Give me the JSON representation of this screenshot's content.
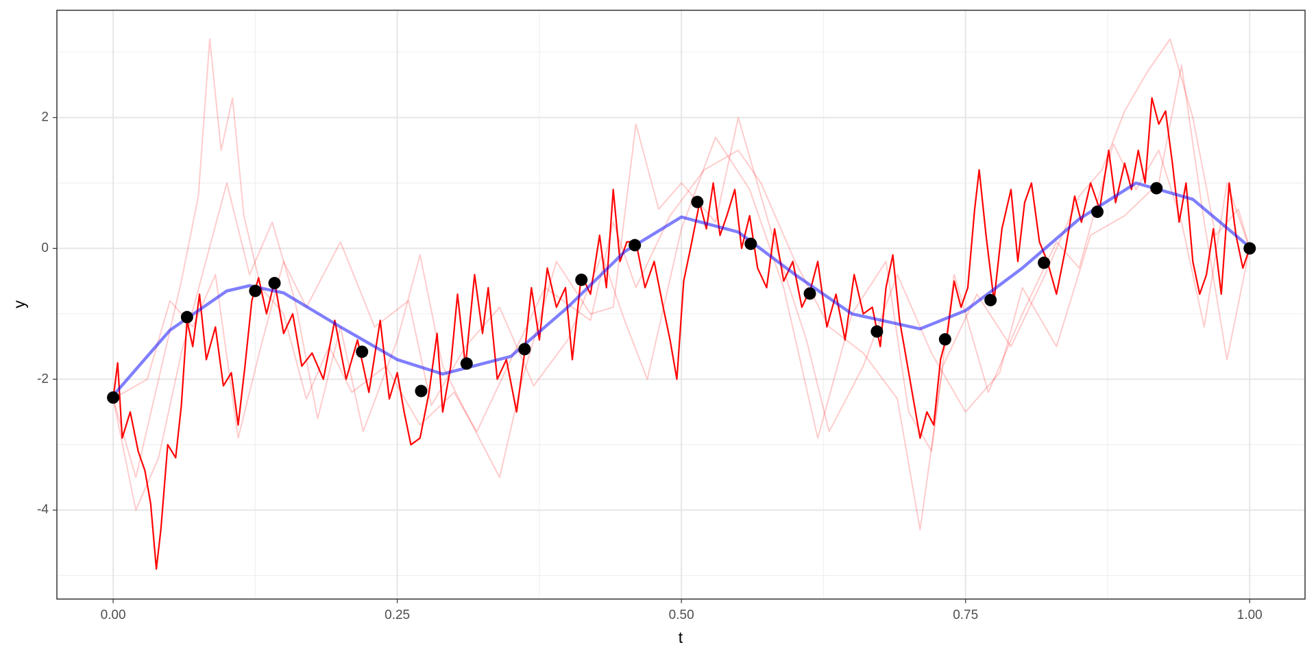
{
  "chart_data": {
    "type": "line",
    "xlabel": "t",
    "ylabel": "y",
    "xlim": [
      -0.0495,
      1.0487
    ],
    "ylim": [
      -5.36,
      3.64
    ],
    "xticks": [
      {
        "value": 0,
        "label": "0.00"
      },
      {
        "value": 0.25,
        "label": "0.25"
      },
      {
        "value": 0.5,
        "label": "0.50"
      },
      {
        "value": 0.75,
        "label": "0.75"
      },
      {
        "value": 1,
        "label": "1.00"
      }
    ],
    "yticks": [
      -4,
      -2,
      0,
      2
    ],
    "xminor_ticks": [
      0.125,
      0.375,
      0.625,
      0.875
    ],
    "yminor_ticks": [
      -5,
      -3,
      -1,
      1,
      3
    ],
    "grid": true,
    "series": [
      {
        "mark": "line",
        "color": "#ff0000",
        "opacity": 0.2,
        "width": 2,
        "x": [
          0,
          0.02,
          0.04,
          0.06,
          0.075,
          0.085,
          0.095,
          0.105,
          0.115,
          0.13,
          0.15,
          0.17,
          0.19,
          0.21,
          0.24,
          0.27,
          0.3,
          0.32,
          0.35,
          0.38,
          0.42,
          0.44,
          0.46,
          0.49,
          0.52,
          0.55,
          0.57,
          0.6,
          0.63,
          0.66,
          0.69,
          0.71,
          0.73,
          0.76,
          0.79,
          0.82,
          0.85,
          0.87,
          0.89,
          0.91,
          0.93,
          0.95,
          0.97,
          0.99,
          1.0
        ],
        "values": [
          -2.3,
          -3.5,
          -2.0,
          -0.5,
          0.8,
          3.2,
          1.5,
          2.3,
          0.5,
          -0.6,
          -1.0,
          -2.3,
          -1.5,
          -2.2,
          -1.8,
          -2.7,
          -2.2,
          -2.8,
          -1.7,
          -0.6,
          -1.1,
          0.4,
          -0.6,
          0.5,
          1.2,
          1.5,
          1.0,
          -0.2,
          -1.2,
          -1.6,
          -2.3,
          -4.3,
          -1.8,
          -0.7,
          -1.5,
          -0.4,
          0.8,
          1.2,
          2.1,
          2.7,
          3.2,
          2.0,
          0.2,
          0.6,
          0.0
        ]
      },
      {
        "mark": "line",
        "color": "#ff0000",
        "opacity": 0.2,
        "width": 2,
        "x": [
          0,
          0.02,
          0.04,
          0.06,
          0.08,
          0.1,
          0.12,
          0.14,
          0.16,
          0.18,
          0.2,
          0.22,
          0.25,
          0.27,
          0.29,
          0.31,
          0.34,
          0.36,
          0.39,
          0.42,
          0.44,
          0.46,
          0.48,
          0.5,
          0.53,
          0.55,
          0.58,
          0.61,
          0.63,
          0.66,
          0.69,
          0.72,
          0.75,
          0.78,
          0.8,
          0.83,
          0.86,
          0.89,
          0.92,
          0.94,
          0.96,
          0.98,
          1.0
        ],
        "values": [
          -2.3,
          -4.0,
          -3.2,
          -1.6,
          -0.3,
          1.0,
          -0.4,
          0.4,
          -0.8,
          -2.6,
          -1.2,
          -2.8,
          -1.4,
          -0.1,
          -1.8,
          -2.5,
          -3.5,
          -2.0,
          -0.2,
          -1.0,
          -0.9,
          1.9,
          0.6,
          1.0,
          0.4,
          2.0,
          0.2,
          -1.4,
          -2.8,
          -1.8,
          -0.4,
          -1.6,
          -2.5,
          -1.9,
          -0.6,
          -1.5,
          0.2,
          0.5,
          1.0,
          2.8,
          0.4,
          -1.7,
          0.0
        ]
      },
      {
        "mark": "line",
        "color": "#ff0000",
        "opacity": 0.2,
        "width": 2,
        "x": [
          0,
          0.03,
          0.05,
          0.07,
          0.09,
          0.11,
          0.13,
          0.15,
          0.17,
          0.2,
          0.23,
          0.26,
          0.28,
          0.31,
          0.34,
          0.37,
          0.4,
          0.43,
          0.45,
          0.47,
          0.5,
          0.53,
          0.56,
          0.59,
          0.62,
          0.65,
          0.68,
          0.7,
          0.72,
          0.74,
          0.77,
          0.8,
          0.83,
          0.85,
          0.88,
          0.9,
          0.92,
          0.94,
          0.96,
          0.98,
          1.0
        ],
        "values": [
          -2.3,
          -2.0,
          -0.8,
          -1.2,
          -0.4,
          -2.9,
          -1.5,
          -0.2,
          -0.9,
          0.1,
          -1.2,
          -0.8,
          -2.4,
          -1.5,
          -0.9,
          -2.1,
          -1.4,
          -0.1,
          -1.1,
          -2.0,
          0.3,
          1.7,
          0.9,
          -0.6,
          -2.9,
          -1.0,
          -0.2,
          -2.5,
          -3.1,
          -0.4,
          -2.2,
          -1.0,
          0.1,
          -0.3,
          1.6,
          0.9,
          1.5,
          0.4,
          -1.2,
          1.0,
          0.0
        ]
      },
      {
        "mark": "line",
        "color": "#ff0000",
        "opacity": 1,
        "width": 2.2,
        "x": [
          0,
          0.004,
          0.008,
          0.015,
          0.022,
          0.028,
          0.033,
          0.038,
          0.042,
          0.048,
          0.055,
          0.06,
          0.065,
          0.07,
          0.076,
          0.082,
          0.09,
          0.097,
          0.104,
          0.11,
          0.116,
          0.122,
          0.128,
          0.135,
          0.142,
          0.15,
          0.158,
          0.166,
          0.175,
          0.185,
          0.195,
          0.205,
          0.215,
          0.225,
          0.235,
          0.243,
          0.25,
          0.256,
          0.262,
          0.27,
          0.278,
          0.285,
          0.29,
          0.297,
          0.303,
          0.31,
          0.318,
          0.325,
          0.33,
          0.338,
          0.346,
          0.355,
          0.362,
          0.368,
          0.375,
          0.382,
          0.39,
          0.398,
          0.404,
          0.412,
          0.42,
          0.428,
          0.434,
          0.44,
          0.446,
          0.452,
          0.46,
          0.468,
          0.476,
          0.484,
          0.49,
          0.496,
          0.502,
          0.508,
          0.516,
          0.522,
          0.528,
          0.534,
          0.54,
          0.547,
          0.553,
          0.56,
          0.567,
          0.575,
          0.582,
          0.59,
          0.598,
          0.606,
          0.614,
          0.62,
          0.628,
          0.636,
          0.644,
          0.652,
          0.66,
          0.668,
          0.675,
          0.68,
          0.686,
          0.692,
          0.698,
          0.705,
          0.71,
          0.716,
          0.722,
          0.728,
          0.734,
          0.74,
          0.746,
          0.752,
          0.758,
          0.762,
          0.768,
          0.775,
          0.782,
          0.79,
          0.796,
          0.802,
          0.808,
          0.815,
          0.822,
          0.83,
          0.838,
          0.846,
          0.852,
          0.86,
          0.868,
          0.876,
          0.882,
          0.89,
          0.896,
          0.902,
          0.908,
          0.914,
          0.92,
          0.926,
          0.932,
          0.938,
          0.944,
          0.95,
          0.956,
          0.962,
          0.968,
          0.975,
          0.982,
          0.988,
          0.994,
          1.0
        ],
        "values": [
          -2.3,
          -1.75,
          -2.9,
          -2.5,
          -3.1,
          -3.4,
          -3.9,
          -4.9,
          -4.3,
          -3.0,
          -3.2,
          -2.4,
          -1.1,
          -1.5,
          -0.7,
          -1.7,
          -1.2,
          -2.1,
          -1.9,
          -2.7,
          -1.8,
          -0.8,
          -0.45,
          -1.0,
          -0.5,
          -1.3,
          -1.0,
          -1.8,
          -1.6,
          -2.0,
          -1.1,
          -2.0,
          -1.4,
          -2.2,
          -1.1,
          -2.3,
          -1.9,
          -2.5,
          -3.0,
          -2.9,
          -2.2,
          -1.3,
          -2.5,
          -1.8,
          -0.7,
          -1.8,
          -0.4,
          -1.3,
          -0.6,
          -2.0,
          -1.7,
          -2.5,
          -1.6,
          -0.6,
          -1.4,
          -0.3,
          -0.9,
          -0.6,
          -1.7,
          -0.4,
          -0.7,
          0.2,
          -0.6,
          0.9,
          -0.2,
          0.1,
          0.1,
          -0.6,
          -0.2,
          -0.9,
          -1.4,
          -2.0,
          -0.5,
          0.0,
          0.7,
          0.3,
          1.0,
          0.2,
          0.5,
          0.9,
          0.0,
          0.5,
          -0.3,
          -0.6,
          0.3,
          -0.5,
          -0.2,
          -0.9,
          -0.6,
          -0.2,
          -1.2,
          -0.7,
          -1.4,
          -0.4,
          -1.0,
          -0.9,
          -1.5,
          -0.6,
          -0.1,
          -1.1,
          -1.7,
          -2.4,
          -2.9,
          -2.5,
          -2.7,
          -1.7,
          -1.3,
          -0.5,
          -0.9,
          -0.6,
          0.6,
          1.2,
          0.2,
          -0.8,
          0.3,
          0.9,
          -0.2,
          0.7,
          1.0,
          0.1,
          -0.2,
          -0.7,
          0.0,
          0.8,
          0.4,
          1.0,
          0.6,
          1.5,
          0.7,
          1.3,
          0.9,
          1.5,
          1.0,
          2.3,
          1.9,
          2.1,
          1.3,
          0.4,
          1.0,
          -0.2,
          -0.7,
          -0.4,
          0.3,
          -0.7,
          1.0,
          0.2,
          -0.3,
          0.0
        ]
      },
      {
        "mark": "line",
        "color": "#0000ff",
        "opacity": 0.5,
        "width": 4.5,
        "x": [
          0,
          0.05,
          0.1,
          0.12,
          0.15,
          0.2,
          0.25,
          0.29,
          0.35,
          0.4,
          0.45,
          0.5,
          0.55,
          0.6,
          0.65,
          0.71,
          0.75,
          0.8,
          0.85,
          0.9,
          0.95,
          1.0
        ],
        "values": [
          -2.25,
          -1.25,
          -0.65,
          -0.57,
          -0.68,
          -1.2,
          -1.7,
          -1.92,
          -1.65,
          -0.9,
          -0.05,
          0.48,
          0.25,
          -0.4,
          -1.0,
          -1.23,
          -0.95,
          -0.3,
          0.45,
          1.0,
          0.75,
          0.02
        ]
      },
      {
        "mark": "point",
        "color": "#000000",
        "opacity": 1,
        "width": 9,
        "x": [
          0,
          0.065,
          0.125,
          0.142,
          0.219,
          0.271,
          0.311,
          0.362,
          0.412,
          0.459,
          0.514,
          0.561,
          0.613,
          0.672,
          0.732,
          0.772,
          0.819,
          0.866,
          0.918,
          1.0
        ],
        "values": [
          -2.28,
          -1.05,
          -0.65,
          -0.53,
          -1.58,
          -2.18,
          -1.76,
          -1.54,
          -0.48,
          0.05,
          0.71,
          0.07,
          -0.69,
          -1.27,
          -1.39,
          -0.79,
          -0.22,
          0.56,
          0.92,
          0.0
        ]
      }
    ]
  }
}
